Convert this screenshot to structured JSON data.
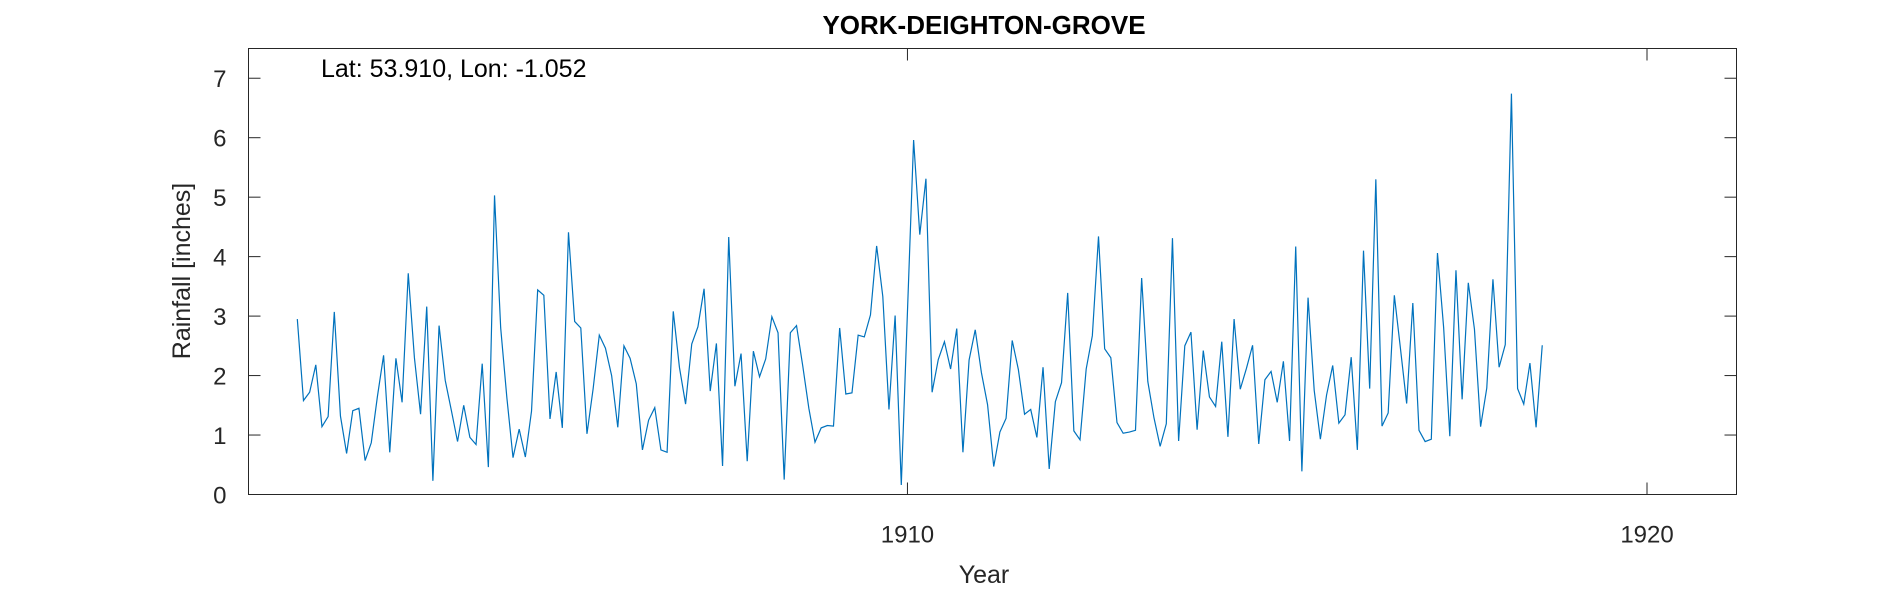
{
  "chart_data": {
    "type": "line",
    "title": "YORK-DEIGHTON-GROVE",
    "xlabel": "Year",
    "ylabel": "Rainfall [inches]",
    "annotation": "Lat: 53.910, Lon: -1.052",
    "xlim": [
      1901.09,
      1921.21
    ],
    "ylim": [
      0,
      7.5
    ],
    "x_ticks": [
      1910,
      1920
    ],
    "y_ticks": [
      0,
      1,
      2,
      3,
      4,
      5,
      6,
      7
    ],
    "grid": false,
    "color": "#0072BD",
    "x_start": 1901.75,
    "x_step": 0.08333333,
    "series": [
      {
        "values": [
          2.95,
          1.58,
          1.72,
          2.18,
          1.14,
          1.31,
          3.07,
          1.32,
          0.69,
          1.41,
          1.45,
          0.57,
          0.87,
          1.65,
          2.34,
          0.71,
          2.29,
          1.55,
          3.72,
          2.3,
          1.35,
          3.16,
          0.23,
          2.84,
          1.92,
          1.41,
          0.89,
          1.5,
          0.96,
          0.84,
          2.2,
          0.46,
          5.03,
          2.8,
          1.63,
          0.62,
          1.1,
          0.63,
          1.4,
          3.44,
          3.35,
          1.27,
          2.06,
          1.12,
          4.41,
          2.91,
          2.8,
          1.02,
          1.78,
          2.68,
          2.46,
          2.0,
          1.13,
          2.5,
          2.29,
          1.86,
          0.75,
          1.25,
          1.46,
          0.75,
          0.71,
          3.08,
          2.14,
          1.52,
          2.53,
          2.82,
          3.46,
          1.74,
          2.54,
          0.48,
          4.33,
          1.82,
          2.37,
          0.56,
          2.41,
          1.98,
          2.28,
          2.99,
          2.72,
          0.25,
          2.72,
          2.84,
          2.17,
          1.45,
          0.88,
          1.12,
          1.16,
          1.15,
          2.8,
          1.69,
          1.71,
          2.68,
          2.65,
          3.02,
          4.18,
          3.33,
          1.43,
          3.01,
          0.16,
          3.07,
          5.96,
          4.37,
          5.31,
          1.72,
          2.27,
          2.57,
          2.11,
          2.79,
          0.71,
          2.26,
          2.77,
          2.05,
          1.51,
          0.47,
          1.05,
          1.28,
          2.59,
          2.1,
          1.35,
          1.43,
          0.96,
          2.14,
          0.43,
          1.56,
          1.88,
          3.39,
          1.07,
          0.92,
          2.11,
          2.67,
          4.34,
          2.45,
          2.3,
          1.21,
          1.03,
          1.05,
          1.08,
          3.64,
          1.9,
          1.29,
          0.81,
          1.19,
          4.31,
          0.9,
          2.5,
          2.73,
          1.09,
          2.42,
          1.64,
          1.48,
          2.57,
          0.97,
          2.95,
          1.77,
          2.12,
          2.51,
          0.85,
          1.93,
          2.07,
          1.55,
          2.24,
          0.9,
          4.17,
          0.39,
          3.31,
          1.75,
          0.93,
          1.67,
          2.17,
          1.2,
          1.34,
          2.31,
          0.75,
          4.1,
          1.78,
          5.3,
          1.15,
          1.37,
          3.35,
          2.45,
          1.53,
          3.22,
          1.08,
          0.89,
          0.93,
          4.06,
          2.81,
          0.98,
          3.77,
          1.6,
          3.56,
          2.78,
          1.14,
          1.79,
          3.62,
          2.14,
          2.52,
          6.74,
          1.78,
          1.52,
          2.21,
          1.13,
          2.51
        ]
      }
    ]
  }
}
